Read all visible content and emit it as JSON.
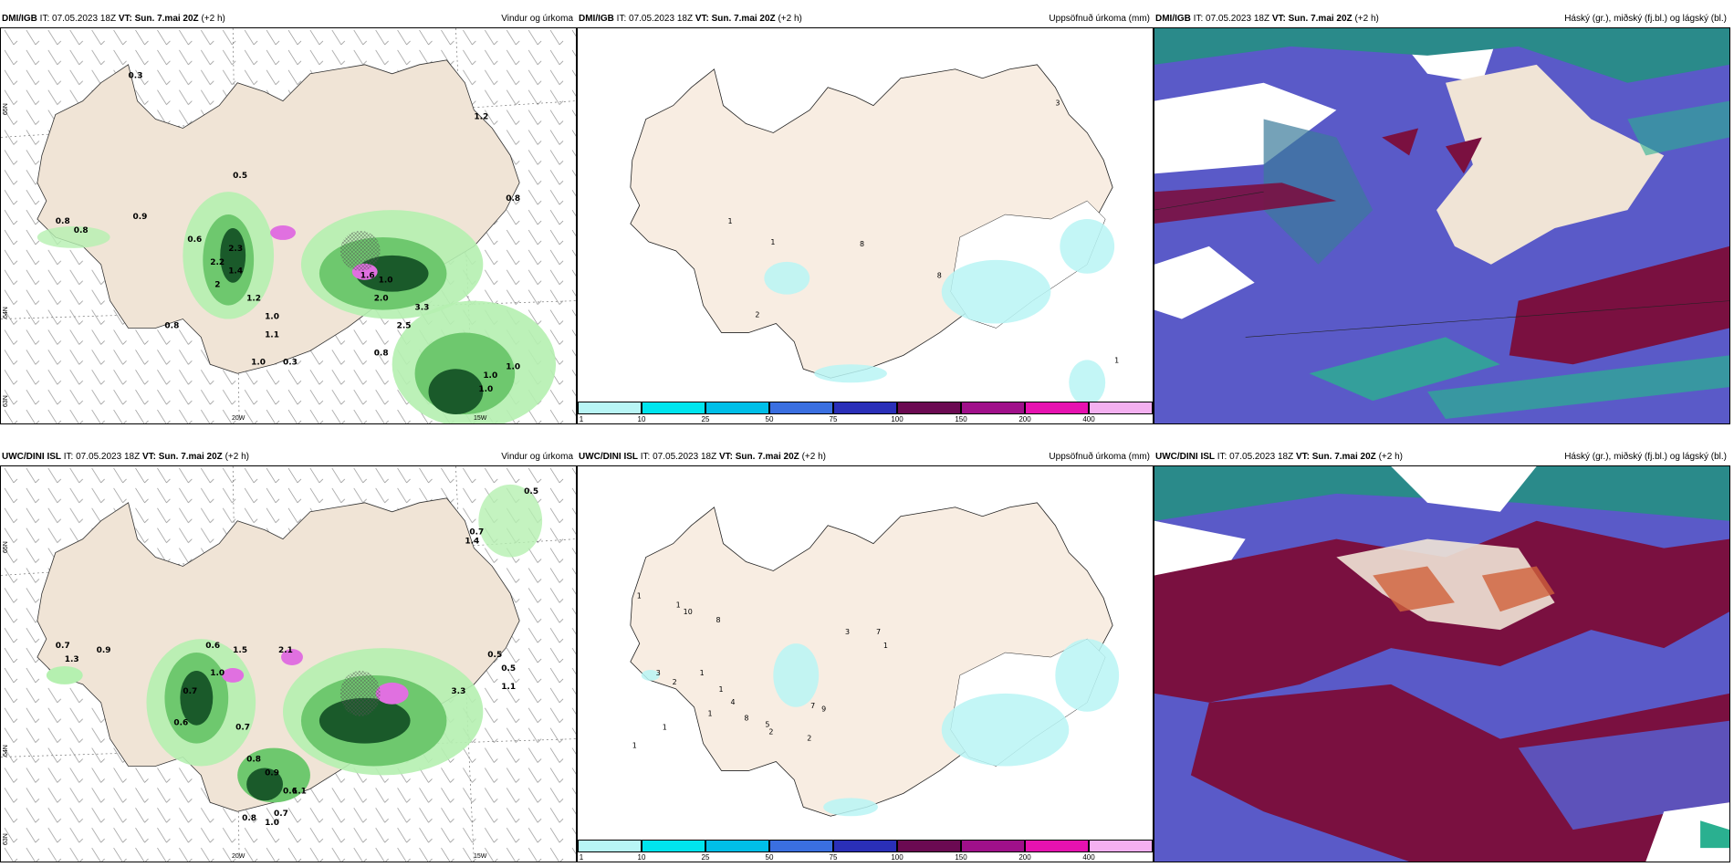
{
  "panels": [
    {
      "id": "p1",
      "model": "DMI/IGB",
      "it": "IT: 07.05.2023 18Z",
      "vt": "VT: Sun. 7.mai 20Z",
      "offset": "(+2 h)",
      "title": "Vindur og úrkoma",
      "axis": {
        "lat_top": "65N",
        "lat_mid": "64N",
        "lat_bot": "63N",
        "lon_left": "20W",
        "lon_right": "15W"
      },
      "values": [
        "0.3",
        "1.2",
        "0.5",
        "0.8",
        "0.8",
        "0.8",
        "0.9",
        "0.6",
        "2.3",
        "2.2",
        "1.4",
        "2",
        "1.2",
        "1.6",
        "1.0",
        "2.0",
        "1.0",
        "3.3",
        "2.5",
        "1.1",
        "0.8",
        "0.8",
        "1.0",
        "1.0",
        "1.0",
        "1.0",
        "0.3"
      ]
    },
    {
      "id": "p2",
      "model": "DMI/IGB",
      "it": "IT: 07.05.2023 18Z",
      "vt": "VT: Sun. 7.mai 20Z",
      "offset": "(+2 h)",
      "title": "Uppsöfnuð úrkoma (mm)",
      "values": [
        "3",
        "1",
        "1",
        "8",
        "8",
        "2",
        "1"
      ]
    },
    {
      "id": "p3",
      "model": "DMI/IGB",
      "it": "IT: 07.05.2023 18Z",
      "vt": "VT: Sun. 7.mai 20Z",
      "offset": "(+2 h)",
      "title": "Háský (gr.), miðský (fj.bl.) og lágský (bl.)"
    },
    {
      "id": "p4",
      "model": "UWC/DINI ISL",
      "it": "IT: 07.05.2023 18Z",
      "vt": "VT: Sun. 7.mai 20Z",
      "offset": "(+2 h)",
      "title": "Vindur og úrkoma",
      "axis": {
        "lat_top": "65N",
        "lat_mid": "64N",
        "lat_bot": "63N",
        "lon_left": "20W",
        "lon_right": "15W"
      },
      "values": [
        "0.5",
        "0.7",
        "1.4",
        "0.7",
        "0.9",
        "0.6",
        "1.3",
        "1.5",
        "2.1",
        "1.0",
        "0.7",
        "0.5",
        "0.5",
        "1.1",
        "3.3",
        "0.6",
        "0.7",
        "0.8",
        "0.9",
        "0.6",
        "1.1",
        "0.7",
        "1.0",
        "0.8"
      ]
    },
    {
      "id": "p5",
      "model": "UWC/DINI ISL",
      "it": "IT: 07.05.2023 18Z",
      "vt": "VT: Sun. 7.mai 20Z",
      "offset": "(+2 h)",
      "title": "Uppsöfnuð úrkoma (mm)",
      "values": [
        "1",
        "1",
        "1",
        "10",
        "8",
        "3",
        "2",
        "1",
        "1",
        "4",
        "8",
        "5",
        "2",
        "7",
        "9",
        "2",
        "3",
        "7",
        "1",
        "1",
        "1",
        "1"
      ]
    },
    {
      "id": "p6",
      "model": "UWC/DINI ISL",
      "it": "IT: 07.05.2023 18Z",
      "vt": "VT: Sun. 7.mai 20Z",
      "offset": "(+2 h)",
      "title": "Háský (gr.), miðský (fj.bl.) og lágský (bl.)"
    }
  ],
  "colorbar": {
    "ticks": [
      "1",
      "10",
      "25",
      "50",
      "75",
      "100",
      "150",
      "200",
      "400"
    ],
    "colors": [
      "#b8f5f5",
      "#00e5ee",
      "#00bfe8",
      "#3a6fe0",
      "#2a2fb8",
      "#6b0a52",
      "#a0108a",
      "#e612b0",
      "#f4b0f0"
    ]
  },
  "colors": {
    "land": "#f0e4d6",
    "land2": "#f8ede2",
    "precip_light": "#b5f0b0",
    "precip_mid": "#6ec86e",
    "precip_dark": "#1a5a2a",
    "pink": "#e070e0",
    "cloud_blue": "#5a5ac8",
    "cloud_red": "#7a1040",
    "cloud_teal": "#2a8a8a"
  }
}
